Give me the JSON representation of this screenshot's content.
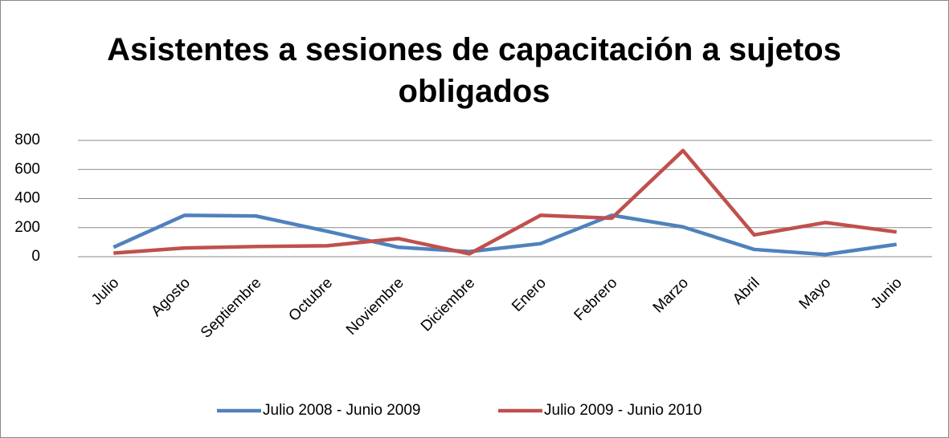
{
  "chart_data": {
    "type": "line",
    "title": "Asistentes a sesiones de capacitación a sujetos obligados",
    "categories": [
      "Julio",
      "Agosto",
      "Septiembre",
      "Octubre",
      "Noviembre",
      "Diciembre",
      "Enero",
      "Febrero",
      "Marzo",
      "Abril",
      "Mayo",
      "Junio"
    ],
    "series": [
      {
        "name": "Julio 2008 - Junio 2009",
        "color": "#4f81bd",
        "values": [
          65,
          285,
          280,
          175,
          65,
          35,
          90,
          285,
          205,
          50,
          15,
          85
        ]
      },
      {
        "name": "Julio 2009 - Junio 2010",
        "color": "#c0504d",
        "values": [
          25,
          60,
          70,
          75,
          125,
          20,
          285,
          265,
          730,
          150,
          235,
          170
        ]
      }
    ],
    "ylim": [
      0,
      800
    ],
    "yticks": [
      0,
      200,
      400,
      600,
      800
    ],
    "grid": true,
    "legend": "bottom"
  }
}
